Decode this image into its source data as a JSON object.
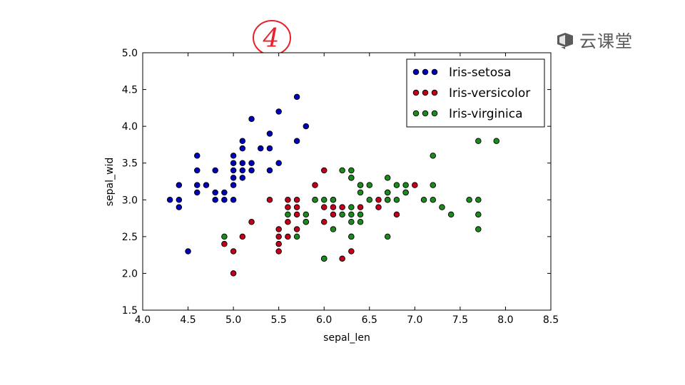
{
  "annotation": {
    "text": "4",
    "color": "#e8202a"
  },
  "watermark": {
    "text": "云课堂",
    "icon": "cloud-classroom-logo-icon",
    "color": "#5a5a5a"
  },
  "chart_data": {
    "type": "scatter",
    "title": "",
    "xlabel": "sepal_len",
    "ylabel": "sepal_wid",
    "xlim": [
      4.0,
      8.5
    ],
    "ylim": [
      1.5,
      5.0
    ],
    "xticks": [
      "4.0",
      "4.5",
      "5.0",
      "5.5",
      "6.0",
      "6.5",
      "7.0",
      "7.5",
      "8.0",
      "8.5"
    ],
    "yticks": [
      "1.5",
      "2.0",
      "2.5",
      "3.0",
      "3.5",
      "4.0",
      "4.5",
      "5.0"
    ],
    "grid": false,
    "legend_position": "top-right",
    "series": [
      {
        "name": "Iris-setosa",
        "color": "#0000b8",
        "points": [
          [
            4.3,
            3.0
          ],
          [
            4.4,
            2.9
          ],
          [
            4.4,
            3.0
          ],
          [
            4.4,
            3.2
          ],
          [
            4.5,
            2.3
          ],
          [
            4.6,
            3.1
          ],
          [
            4.6,
            3.2
          ],
          [
            4.6,
            3.4
          ],
          [
            4.6,
            3.6
          ],
          [
            4.7,
            3.2
          ],
          [
            4.8,
            3.0
          ],
          [
            4.8,
            3.1
          ],
          [
            4.8,
            3.4
          ],
          [
            4.9,
            3.0
          ],
          [
            4.9,
            3.1
          ],
          [
            5.0,
            3.0
          ],
          [
            5.0,
            3.2
          ],
          [
            5.0,
            3.3
          ],
          [
            5.0,
            3.4
          ],
          [
            5.0,
            3.5
          ],
          [
            5.0,
            3.6
          ],
          [
            5.1,
            3.3
          ],
          [
            5.1,
            3.4
          ],
          [
            5.1,
            3.5
          ],
          [
            5.1,
            3.7
          ],
          [
            5.1,
            3.8
          ],
          [
            5.2,
            3.4
          ],
          [
            5.2,
            3.5
          ],
          [
            5.2,
            4.1
          ],
          [
            5.3,
            3.7
          ],
          [
            5.4,
            3.4
          ],
          [
            5.4,
            3.7
          ],
          [
            5.4,
            3.9
          ],
          [
            5.5,
            3.5
          ],
          [
            5.5,
            4.2
          ],
          [
            5.7,
            3.8
          ],
          [
            5.7,
            4.4
          ],
          [
            5.8,
            4.0
          ]
        ]
      },
      {
        "name": "Iris-versicolor",
        "color": "#c0001a",
        "points": [
          [
            4.9,
            2.4
          ],
          [
            5.0,
            2.0
          ],
          [
            5.0,
            2.3
          ],
          [
            5.1,
            2.5
          ],
          [
            5.2,
            2.7
          ],
          [
            5.4,
            3.0
          ],
          [
            5.5,
            2.3
          ],
          [
            5.5,
            2.4
          ],
          [
            5.5,
            2.5
          ],
          [
            5.5,
            2.6
          ],
          [
            5.6,
            2.5
          ],
          [
            5.6,
            2.7
          ],
          [
            5.6,
            2.9
          ],
          [
            5.6,
            3.0
          ],
          [
            5.7,
            2.6
          ],
          [
            5.7,
            2.8
          ],
          [
            5.7,
            2.9
          ],
          [
            5.7,
            3.0
          ],
          [
            5.8,
            2.7
          ],
          [
            5.9,
            3.0
          ],
          [
            5.9,
            3.2
          ],
          [
            6.0,
            2.2
          ],
          [
            6.0,
            2.7
          ],
          [
            6.0,
            2.9
          ],
          [
            6.0,
            3.4
          ],
          [
            6.1,
            2.8
          ],
          [
            6.1,
            2.9
          ],
          [
            6.1,
            3.0
          ],
          [
            6.2,
            2.2
          ],
          [
            6.2,
            2.9
          ],
          [
            6.3,
            2.3
          ],
          [
            6.3,
            2.5
          ],
          [
            6.3,
            3.3
          ],
          [
            6.4,
            2.9
          ],
          [
            6.4,
            3.2
          ],
          [
            6.6,
            2.9
          ],
          [
            6.6,
            3.0
          ],
          [
            6.7,
            3.0
          ],
          [
            6.7,
            3.1
          ],
          [
            6.8,
            2.8
          ],
          [
            6.9,
            3.1
          ],
          [
            7.0,
            3.2
          ]
        ]
      },
      {
        "name": "Iris-virginica",
        "color": "#1a8a1a",
        "points": [
          [
            4.9,
            2.5
          ],
          [
            5.6,
            2.8
          ],
          [
            5.7,
            2.5
          ],
          [
            5.8,
            2.7
          ],
          [
            5.8,
            2.8
          ],
          [
            5.9,
            3.0
          ],
          [
            6.0,
            2.2
          ],
          [
            6.0,
            3.0
          ],
          [
            6.1,
            2.6
          ],
          [
            6.1,
            3.0
          ],
          [
            6.2,
            2.8
          ],
          [
            6.2,
            3.4
          ],
          [
            6.3,
            2.5
          ],
          [
            6.3,
            2.7
          ],
          [
            6.3,
            2.8
          ],
          [
            6.3,
            2.9
          ],
          [
            6.3,
            3.3
          ],
          [
            6.3,
            3.4
          ],
          [
            6.4,
            2.7
          ],
          [
            6.4,
            2.8
          ],
          [
            6.4,
            3.1
          ],
          [
            6.4,
            3.2
          ],
          [
            6.5,
            3.0
          ],
          [
            6.5,
            3.2
          ],
          [
            6.7,
            2.5
          ],
          [
            6.7,
            3.0
          ],
          [
            6.7,
            3.1
          ],
          [
            6.7,
            3.3
          ],
          [
            6.8,
            3.0
          ],
          [
            6.8,
            3.2
          ],
          [
            6.9,
            3.1
          ],
          [
            6.9,
            3.2
          ],
          [
            7.1,
            3.0
          ],
          [
            7.2,
            3.0
          ],
          [
            7.2,
            3.2
          ],
          [
            7.2,
            3.6
          ],
          [
            7.3,
            2.9
          ],
          [
            7.4,
            2.8
          ],
          [
            7.6,
            3.0
          ],
          [
            7.7,
            2.6
          ],
          [
            7.7,
            2.8
          ],
          [
            7.7,
            3.0
          ],
          [
            7.7,
            3.8
          ],
          [
            7.9,
            3.8
          ]
        ]
      }
    ]
  }
}
